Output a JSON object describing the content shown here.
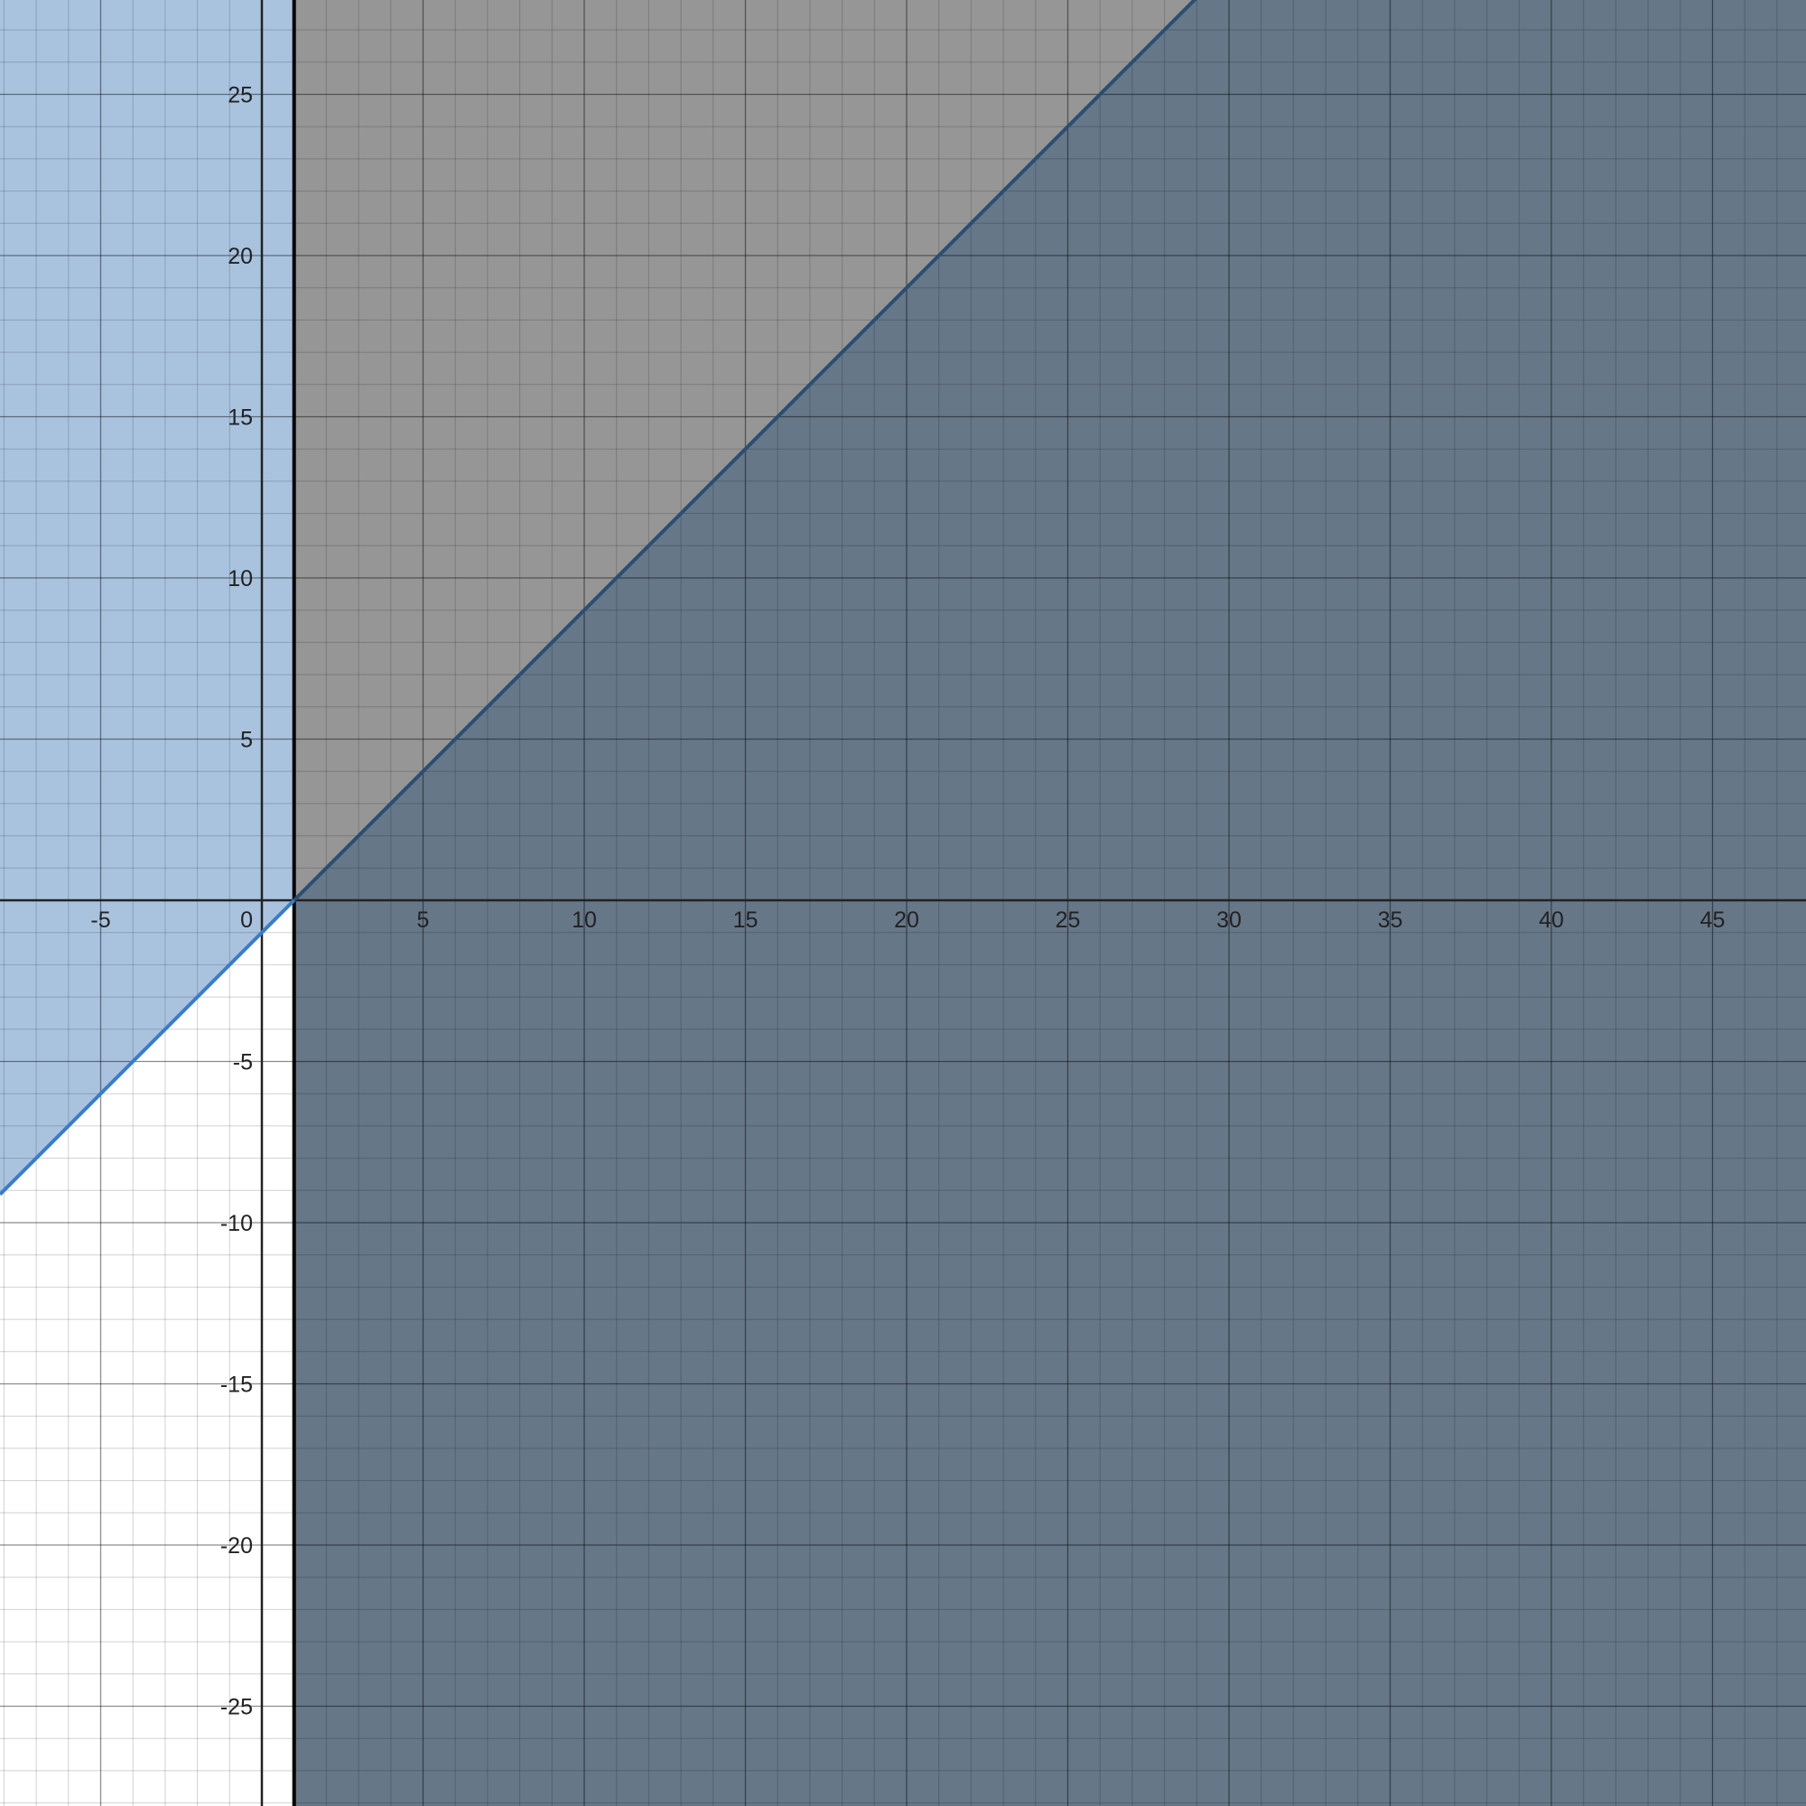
{
  "chart_data": {
    "type": "line",
    "title": "",
    "xlabel": "",
    "ylabel": "",
    "xlim": [
      -9.1,
      47.0
    ],
    "ylim": [
      -28.0,
      28.0
    ],
    "grid": true,
    "minor_grid_step": 1,
    "major_grid_step": 5,
    "x_ticks": [
      -5,
      0,
      5,
      10,
      15,
      20,
      25,
      30,
      35,
      40,
      45
    ],
    "x_tick_labels": [
      "-5",
      "0",
      "5",
      "10",
      "15",
      "20",
      "25",
      "30",
      "35",
      "40",
      "45"
    ],
    "y_ticks": [
      25,
      20,
      15,
      10,
      5,
      -5,
      -10,
      -15,
      -20,
      -25
    ],
    "y_tick_labels": [
      "25",
      "20",
      "15",
      "10",
      "5",
      "-5",
      "-10",
      "-15",
      "-20",
      "-25"
    ],
    "vertical_lines": [
      {
        "x": 0,
        "color": "#000000"
      },
      {
        "x": 1,
        "color": "#000000"
      }
    ],
    "series": [
      {
        "equation": "y = x - 1",
        "slope": 1,
        "intercept": -1,
        "color": "#3a7dc5",
        "shaded_region": "above",
        "fill_color": "#a9c3df"
      }
    ],
    "regions": [
      {
        "description": "x > 1 half-plane",
        "condition": "x >= 1",
        "fill_color": "#969696"
      },
      {
        "description": "overlap of x > 1 and y < x - 1",
        "condition": "x >= 1 and y <= x - 1",
        "fill_color": "#667788"
      }
    ]
  }
}
